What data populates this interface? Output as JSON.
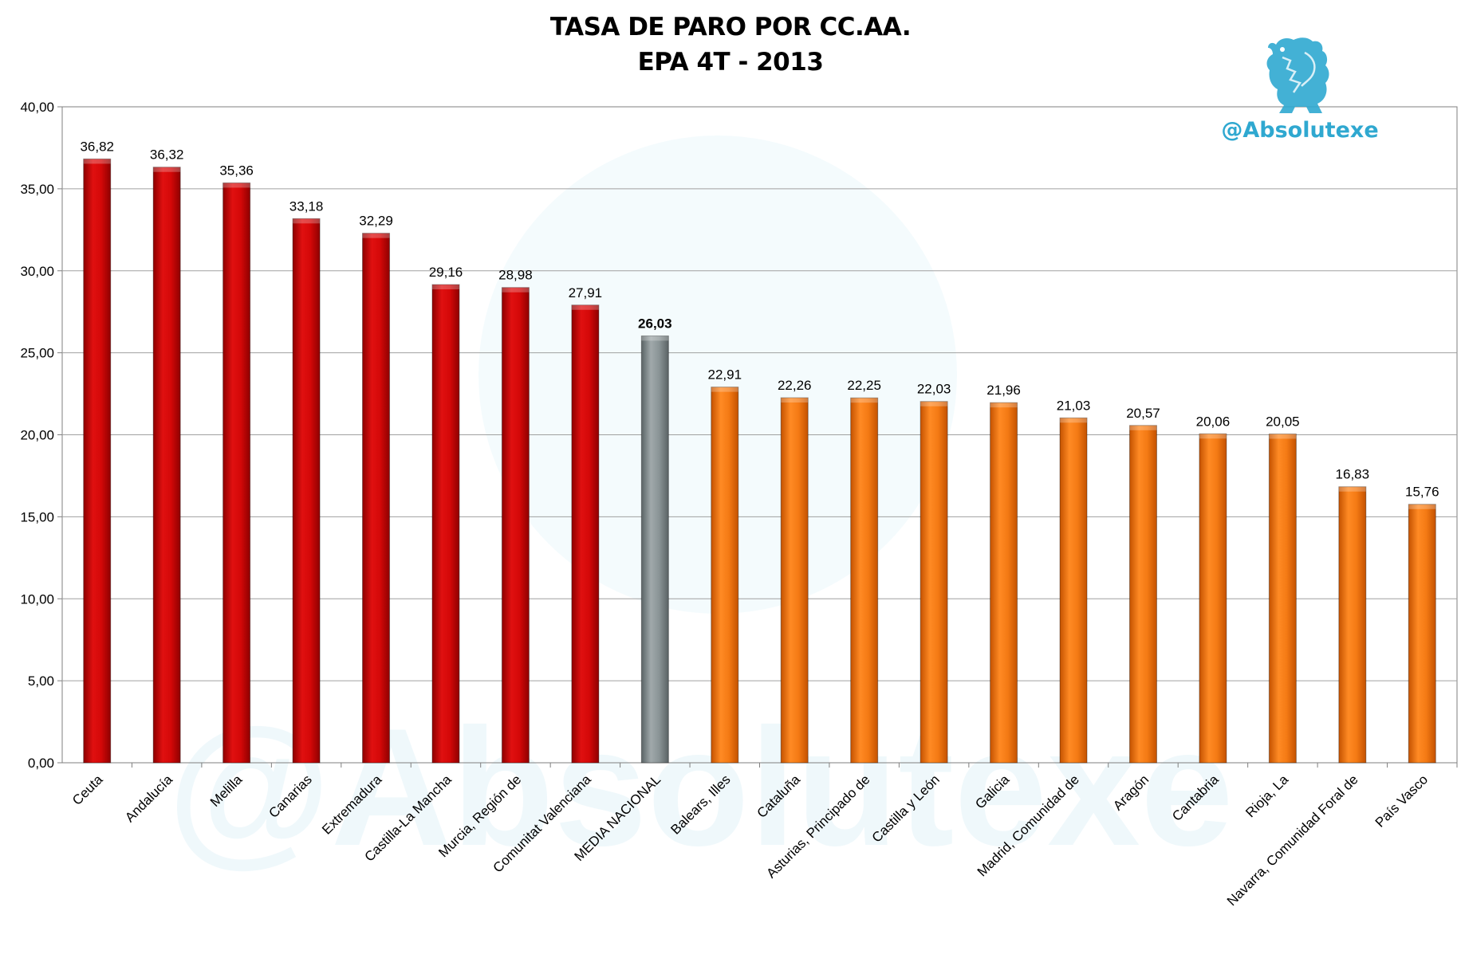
{
  "title_line1": "TASA DE PARO POR CC.AA.",
  "title_line2": "EPA 4T - 2013",
  "brand": {
    "handle": "@Absolutexe",
    "watermark": "@Absolutexe",
    "logo_icon": "griffin-logo-icon",
    "color": "#2fa8d0"
  },
  "colors": {
    "high": "#cc0000",
    "national": "#808a8c",
    "low": "#f07818",
    "grid": "#a0a0a0"
  },
  "chart_data": {
    "type": "bar",
    "title": "TASA DE PARO POR CC.AA.",
    "subtitle": "EPA 4T - 2013",
    "ylim": [
      0,
      40
    ],
    "yticks": [
      "0,00",
      "5,00",
      "10,00",
      "15,00",
      "20,00",
      "25,00",
      "30,00",
      "35,00",
      "40,00"
    ],
    "grid": true,
    "categories": [
      "Ceuta",
      "Andalucía",
      "Melilla",
      "Canarias",
      "Extremadura",
      "Castilla-La Mancha",
      "Murcia, Región de",
      "Comunitat Valenciana",
      "MEDIA NACIONAL",
      "Balears, Illes",
      "Cataluña",
      "Asturias, Principado de",
      "Castilla y León",
      "Galicia",
      "Madrid, Comunidad de",
      "Aragón",
      "Cantabria",
      "Rioja, La",
      "Navarra, Comunidad Foral de",
      "País Vasco"
    ],
    "values": [
      36.82,
      36.32,
      35.36,
      33.18,
      32.29,
      29.16,
      28.98,
      27.91,
      26.03,
      22.91,
      22.26,
      22.25,
      22.03,
      21.96,
      21.03,
      20.57,
      20.06,
      20.05,
      16.83,
      15.76
    ],
    "value_labels": [
      "36,82",
      "36,32",
      "35,36",
      "33,18",
      "32,29",
      "29,16",
      "28,98",
      "27,91",
      "26,03",
      "22,91",
      "22,26",
      "22,25",
      "22,03",
      "21,96",
      "21,03",
      "20,57",
      "20,06",
      "20,05",
      "16,83",
      "15,76"
    ],
    "bar_groups": [
      "high",
      "high",
      "high",
      "high",
      "high",
      "high",
      "high",
      "high",
      "national",
      "low",
      "low",
      "low",
      "low",
      "low",
      "low",
      "low",
      "low",
      "low",
      "low",
      "low"
    ]
  }
}
